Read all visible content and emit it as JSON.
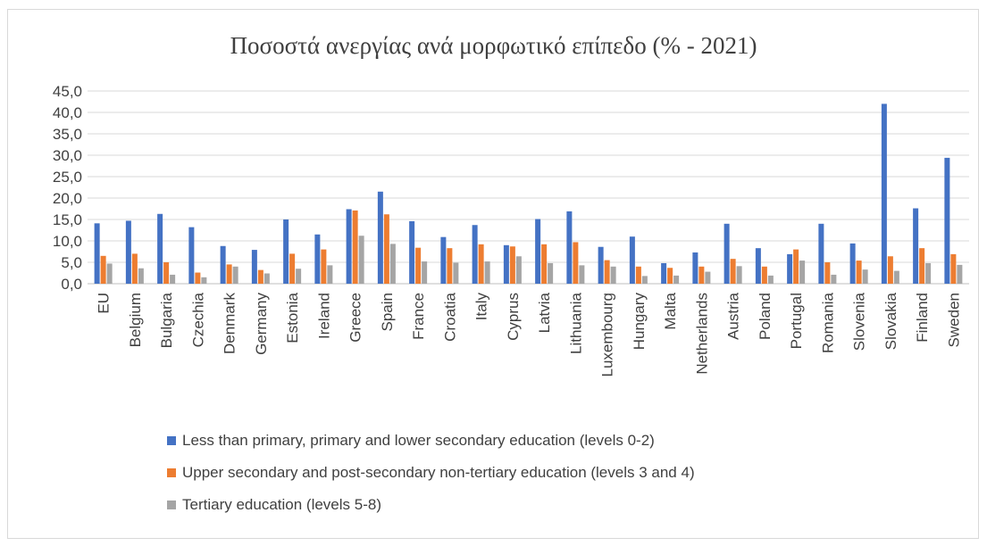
{
  "colors": {
    "series1": "#4472c4",
    "series2": "#ed7d31",
    "series3": "#a5a5a5",
    "grid": "#d9d9d9",
    "text": "#404040"
  },
  "chart_data": {
    "type": "bar",
    "title": "Ποσοστά ανεργίας ανά μορφωτικό επίπεδο (% - 2021)",
    "xlabel": "",
    "ylabel": "",
    "ylim": [
      0,
      45
    ],
    "yticks": [
      "0,0",
      "5,0",
      "10,0",
      "15,0",
      "20,0",
      "25,0",
      "30,0",
      "35,0",
      "40,0",
      "45,0"
    ],
    "grid": true,
    "legend": "bottom",
    "categories": [
      "EU",
      "Belgium",
      "Bulgaria",
      "Czechia",
      "Denmark",
      "Germany",
      "Estonia",
      "Ireland",
      "Greece",
      "Spain",
      "France",
      "Croatia",
      "Italy",
      "Cyprus",
      "Latvia",
      "Lithuania",
      "Luxembourg",
      "Hungary",
      "Malta",
      "Netherlands",
      "Austria",
      "Poland",
      "Portugal",
      "Romania",
      "Slovenia",
      "Slovakia",
      "Finland",
      "Sweden"
    ],
    "series": [
      {
        "name": "Less than primary, primary and lower secondary education (levels 0-2)",
        "values": [
          14.1,
          14.7,
          16.3,
          13.2,
          8.8,
          7.9,
          15.0,
          11.5,
          17.4,
          21.5,
          14.6,
          10.9,
          13.7,
          9.0,
          15.1,
          16.9,
          8.6,
          11.0,
          4.8,
          7.3,
          14.0,
          8.3,
          6.9,
          14.0,
          9.4,
          42.0,
          17.6,
          29.4
        ]
      },
      {
        "name": "Upper secondary and post-secondary non-tertiary education (levels 3 and 4)",
        "values": [
          6.5,
          7.0,
          5.0,
          2.6,
          4.5,
          3.2,
          7.0,
          8.0,
          17.1,
          16.2,
          8.4,
          8.3,
          9.2,
          8.7,
          9.2,
          9.7,
          5.5,
          4.0,
          3.7,
          4.0,
          5.8,
          4.0,
          8.0,
          5.0,
          5.4,
          6.4,
          8.3,
          6.9
        ]
      },
      {
        "name": "Tertiary education (levels 5-8)",
        "values": [
          4.7,
          3.6,
          2.1,
          1.5,
          4.0,
          2.4,
          3.5,
          4.3,
          11.2,
          9.3,
          5.2,
          4.9,
          5.2,
          6.4,
          4.8,
          4.3,
          4.0,
          1.8,
          1.9,
          2.8,
          4.1,
          1.9,
          5.4,
          2.1,
          3.3,
          3.0,
          4.8,
          4.4
        ]
      }
    ]
  }
}
